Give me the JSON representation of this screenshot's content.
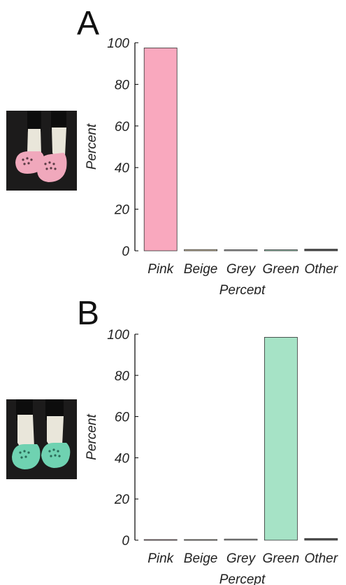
{
  "chart_data": [
    {
      "type": "bar",
      "panel_label": "A",
      "categories": [
        "Pink",
        "Beige",
        "Grey",
        "Green",
        "Other"
      ],
      "values": [
        97.5,
        0.6,
        0.5,
        0.5,
        0.8
      ],
      "bar_colors": [
        "#f9a8be",
        "#d8c8a8",
        "#b9b9b9",
        "#a6e3c6",
        "#4a4a4a"
      ],
      "xlabel": "Percept",
      "ylabel": "Percent",
      "ylim": [
        0,
        100
      ],
      "yticks": [
        0,
        20,
        40,
        60,
        80,
        100
      ],
      "grid": false,
      "stimulus_image": {
        "subject": "feet-in-pink-clogs",
        "clog_color": "#f0a8bc",
        "background": "#1b1a1a"
      }
    },
    {
      "type": "bar",
      "panel_label": "B",
      "categories": [
        "Pink",
        "Beige",
        "Grey",
        "Green",
        "Other"
      ],
      "values": [
        0.3,
        0.3,
        0.5,
        98.5,
        0.8
      ],
      "bar_colors": [
        "#f9a8be",
        "#d8c8a8",
        "#b9b9b9",
        "#a6e3c6",
        "#4a4a4a"
      ],
      "xlabel": "Percept",
      "ylabel": "Percent",
      "ylim": [
        0,
        100
      ],
      "yticks": [
        0,
        20,
        40,
        60,
        80,
        100
      ],
      "grid": false,
      "stimulus_image": {
        "subject": "feet-in-green-clogs",
        "clog_color": "#6fd2b1",
        "background": "#1b1a1a"
      }
    }
  ]
}
